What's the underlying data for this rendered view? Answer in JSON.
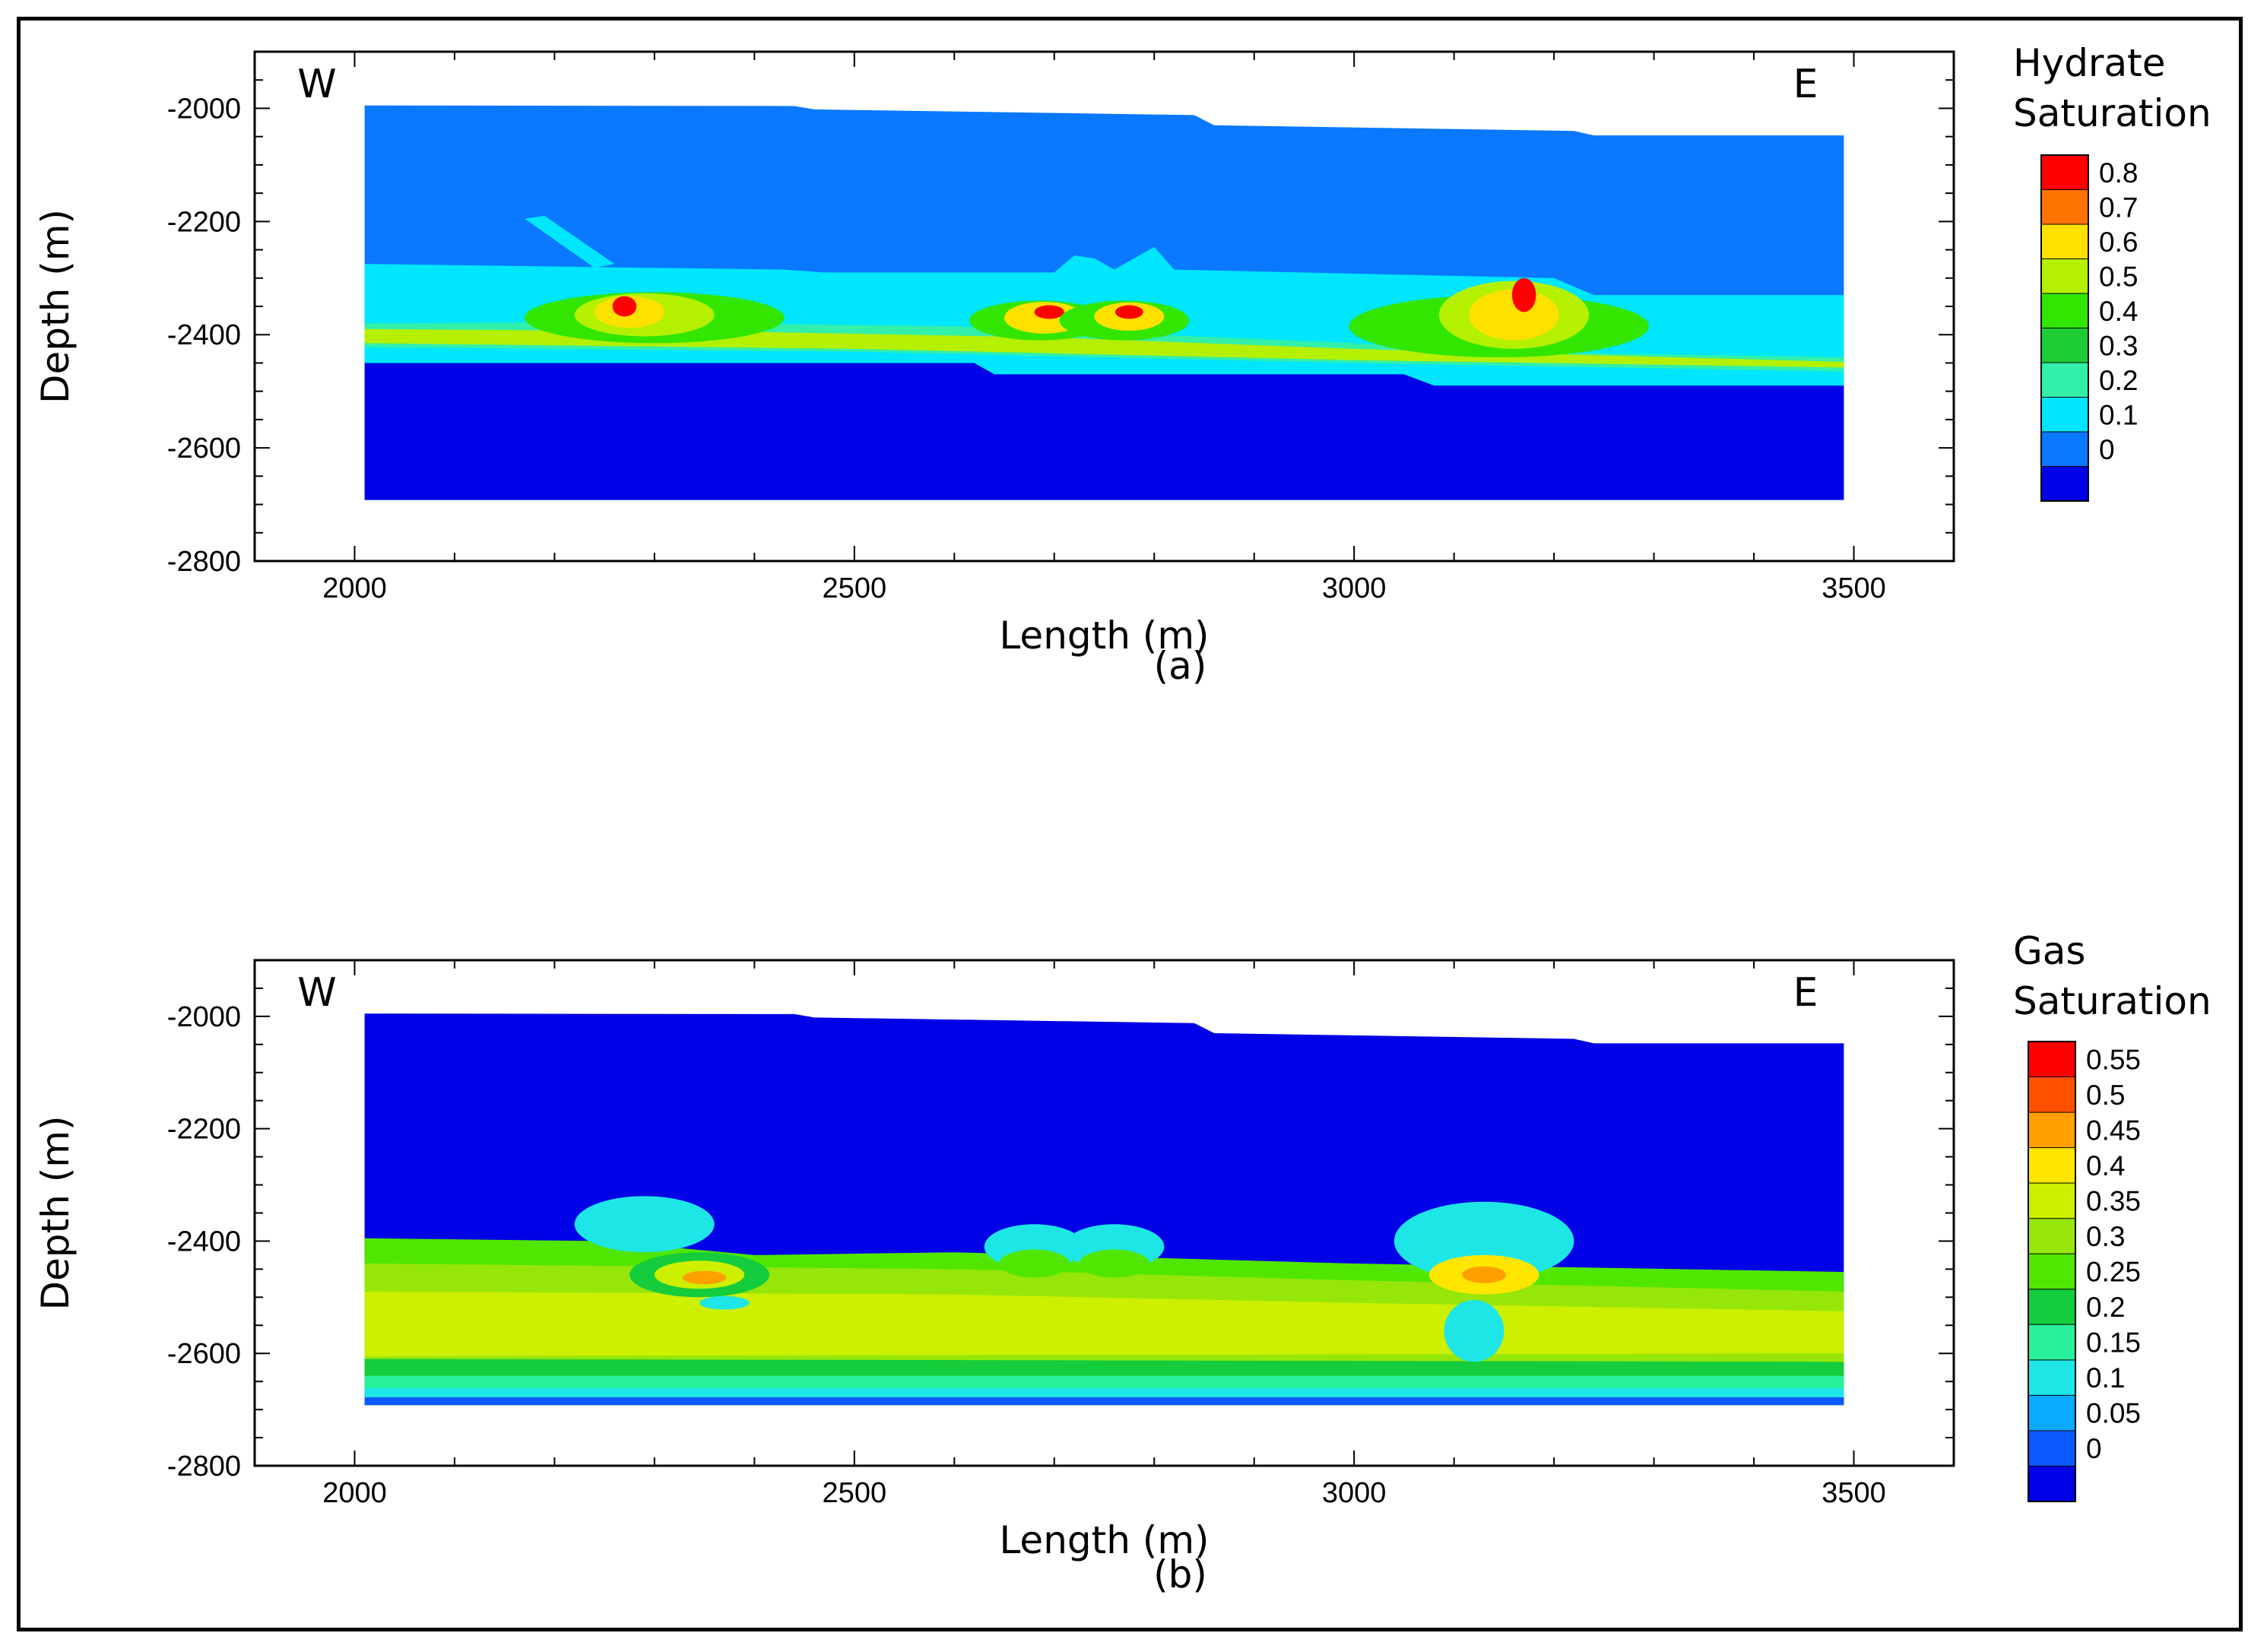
{
  "chart_data": [
    {
      "type": "heatmap",
      "panel": "a",
      "caption": "(a)",
      "xlabel": "Length (m)",
      "ylabel": "Depth (m)",
      "xlim": [
        1900,
        3600
      ],
      "ylim": [
        -2800,
        -1900
      ],
      "xticks": [
        2000,
        2500,
        3000,
        3500
      ],
      "yticks": [
        -2000,
        -2200,
        -2400,
        -2600,
        -2800
      ],
      "x_tick_labels": [
        "2000",
        "2500",
        "3000",
        "3500"
      ],
      "y_tick_labels": [
        "-2000",
        "-2200",
        "-2400",
        "-2600",
        "-2800"
      ],
      "grid": false,
      "west_label": "W",
      "east_label": "E",
      "legend": {
        "title_line1": "Hydrate",
        "title_line2": "Saturation",
        "placement": "right",
        "labels": [
          "0.8",
          "0.7",
          "0.6",
          "0.5",
          "0.4",
          "0.3",
          "0.2",
          "0.1",
          "0"
        ],
        "colors": [
          "#ff0000",
          "#ff7300",
          "#ffe100",
          "#b4f000",
          "#32e600",
          "#1ecc34",
          "#32f0aa",
          "#00e6ff",
          "#0a78ff",
          "#0000e6"
        ]
      },
      "layers": [
        {
          "top": [
            [
              2010,
              -1995
            ],
            [
              2440,
              -1996
            ],
            [
              2460,
              -2002
            ],
            [
              2840,
              -2012
            ],
            [
              2860,
              -2030
            ],
            [
              3220,
              -2040
            ],
            [
              3240,
              -2048
            ],
            [
              3490,
              -2048
            ]
          ],
          "bottom": [
            [
              2010,
              -2692
            ],
            [
              3490,
              -2692
            ]
          ],
          "color": "#0a78ff"
        },
        {
          "top": [
            [
              2010,
              -2275
            ],
            [
              2430,
              -2285
            ],
            [
              2470,
              -2290
            ],
            [
              2700,
              -2290
            ],
            [
              2720,
              -2260
            ],
            [
              2740,
              -2265
            ],
            [
              2760,
              -2285
            ],
            [
              2800,
              -2245
            ],
            [
              2820,
              -2285
            ],
            [
              3200,
              -2300
            ],
            [
              3240,
              -2330
            ],
            [
              3490,
              -2330
            ]
          ],
          "bottom": [
            [
              2010,
              -2692
            ],
            [
              3490,
              -2692
            ]
          ],
          "color": "#00e6ff"
        },
        {
          "top": [
            [
              2010,
              -2380
            ],
            [
              2250,
              -2378
            ],
            [
              2600,
              -2385
            ],
            [
              3000,
              -2415
            ],
            [
              3150,
              -2430
            ],
            [
              3490,
              -2440
            ]
          ],
          "bottom": [
            [
              2010,
              -2422
            ],
            [
              2500,
              -2430
            ],
            [
              3000,
              -2450
            ],
            [
              3490,
              -2465
            ]
          ],
          "color": "#32f0aa"
        },
        {
          "top": [
            [
              2010,
              -2390
            ],
            [
              2400,
              -2395
            ],
            [
              2700,
              -2405
            ],
            [
              3000,
              -2425
            ],
            [
              3490,
              -2448
            ]
          ],
          "bottom": [
            [
              2010,
              -2415
            ],
            [
              2500,
              -2425
            ],
            [
              3000,
              -2445
            ],
            [
              3490,
              -2458
            ]
          ],
          "color": "#b4f000"
        },
        {
          "top": [
            [
              2010,
              -2450
            ],
            [
              2620,
              -2450
            ],
            [
              2640,
              -2470
            ],
            [
              3050,
              -2470
            ],
            [
              3080,
              -2490
            ],
            [
              3490,
              -2490
            ]
          ],
          "bottom": [
            [
              2010,
              -2692
            ],
            [
              3490,
              -2692
            ]
          ],
          "color": "#0000e6"
        }
      ],
      "zones": [
        {
          "x": 2300,
          "y": -2370,
          "rx": 130,
          "ry": 45,
          "color": "#32e600"
        },
        {
          "x": 2290,
          "y": -2365,
          "rx": 70,
          "ry": 38,
          "color": "#b4f000"
        },
        {
          "x": 2275,
          "y": -2360,
          "rx": 35,
          "ry": 28,
          "color": "#ffe100"
        },
        {
          "x": 2270,
          "y": -2350,
          "rx": 12,
          "ry": 18,
          "color": "#ff0000"
        },
        {
          "x": 2685,
          "y": -2375,
          "rx": 70,
          "ry": 35,
          "color": "#32e600"
        },
        {
          "x": 2690,
          "y": -2370,
          "rx": 40,
          "ry": 28,
          "color": "#ffe100"
        },
        {
          "x": 2695,
          "y": -2360,
          "rx": 15,
          "ry": 12,
          "color": "#ff0000"
        },
        {
          "x": 2770,
          "y": -2375,
          "rx": 65,
          "ry": 35,
          "color": "#32e600"
        },
        {
          "x": 2775,
          "y": -2368,
          "rx": 35,
          "ry": 25,
          "color": "#ffe100"
        },
        {
          "x": 2775,
          "y": -2360,
          "rx": 14,
          "ry": 12,
          "color": "#ff0000"
        },
        {
          "x": 3145,
          "y": -2385,
          "rx": 150,
          "ry": 55,
          "color": "#32e600"
        },
        {
          "x": 3160,
          "y": -2365,
          "rx": 75,
          "ry": 60,
          "color": "#b4f000"
        },
        {
          "x": 3160,
          "y": -2365,
          "rx": 45,
          "ry": 45,
          "color": "#ffe100"
        },
        {
          "x": 3170,
          "y": -2330,
          "rx": 12,
          "ry": 30,
          "color": "#ff0000"
        }
      ],
      "features": [
        {
          "points": [
            [
              2170,
              -2195
            ],
            [
              2190,
              -2190
            ],
            [
              2260,
              -2275
            ],
            [
              2240,
              -2282
            ]
          ],
          "color": "#00e6ff"
        }
      ]
    },
    {
      "type": "heatmap",
      "panel": "b",
      "caption": "(b)",
      "xlabel": "Length (m)",
      "ylabel": "Depth (m)",
      "xlim": [
        1900,
        3600
      ],
      "ylim": [
        -2800,
        -1900
      ],
      "xticks": [
        2000,
        2500,
        3000,
        3500
      ],
      "yticks": [
        -2000,
        -2200,
        -2400,
        -2600,
        -2800
      ],
      "x_tick_labels": [
        "2000",
        "2500",
        "3000",
        "3500"
      ],
      "y_tick_labels": [
        "-2000",
        "-2200",
        "-2400",
        "-2600",
        "-2800"
      ],
      "grid": false,
      "west_label": "W",
      "east_label": "E",
      "legend": {
        "title_line1": "Gas",
        "title_line2": "Saturation",
        "placement": "right",
        "labels": [
          "0.55",
          "0.5",
          "0.45",
          "0.4",
          "0.35",
          "0.3",
          "0.25",
          "0.2",
          "0.15",
          "0.1",
          "0.05",
          "0"
        ],
        "colors": [
          "#ff0000",
          "#ff5000",
          "#ffa000",
          "#ffe600",
          "#ccf000",
          "#96e60a",
          "#50e600",
          "#14cc3c",
          "#28f09a",
          "#1ee6e6",
          "#0aaaff",
          "#0a5aff",
          "#0000e6"
        ]
      },
      "layers": [
        {
          "top": [
            [
              2010,
              -1995
            ],
            [
              2440,
              -1996
            ],
            [
              2460,
              -2002
            ],
            [
              2840,
              -2012
            ],
            [
              2860,
              -2030
            ],
            [
              3220,
              -2040
            ],
            [
              3240,
              -2048
            ],
            [
              3490,
              -2048
            ]
          ],
          "bottom": [
            [
              2010,
              -2692
            ],
            [
              3490,
              -2692
            ]
          ],
          "color": "#0000e6"
        },
        {
          "top": [
            [
              2010,
              -2395
            ],
            [
              2250,
              -2400
            ],
            [
              2400,
              -2425
            ],
            [
              2600,
              -2420
            ],
            [
              3000,
              -2440
            ],
            [
              3490,
              -2455
            ]
          ],
          "bottom": [
            [
              2010,
              -2692
            ],
            [
              3490,
              -2692
            ]
          ],
          "color": "#50e600"
        },
        {
          "top": [
            [
              2010,
              -2440
            ],
            [
              2600,
              -2450
            ],
            [
              3000,
              -2470
            ],
            [
              3490,
              -2490
            ]
          ],
          "bottom": [
            [
              2010,
              -2610
            ],
            [
              3490,
              -2615
            ]
          ],
          "color": "#96e60a"
        },
        {
          "top": [
            [
              2010,
              -2490
            ],
            [
              2600,
              -2495
            ],
            [
              3000,
              -2510
            ],
            [
              3490,
              -2525
            ]
          ],
          "bottom": [
            [
              2010,
              -2605
            ],
            [
              3490,
              -2600
            ]
          ],
          "color": "#ccf000"
        },
        {
          "top": [
            [
              2010,
              -2610
            ],
            [
              3490,
              -2615
            ]
          ],
          "bottom": [
            [
              2010,
              -2640
            ],
            [
              3490,
              -2640
            ]
          ],
          "color": "#14cc3c"
        },
        {
          "top": [
            [
              2010,
              -2640
            ],
            [
              3490,
              -2640
            ]
          ],
          "bottom": [
            [
              2010,
              -2662
            ],
            [
              3490,
              -2662
            ]
          ],
          "color": "#28f09a"
        },
        {
          "top": [
            [
              2010,
              -2662
            ],
            [
              3490,
              -2662
            ]
          ],
          "bottom": [
            [
              2010,
              -2678
            ],
            [
              3490,
              -2678
            ]
          ],
          "color": "#1ee6e6"
        },
        {
          "top": [
            [
              2010,
              -2678
            ],
            [
              3490,
              -2678
            ]
          ],
          "bottom": [
            [
              2010,
              -2692
            ],
            [
              3490,
              -2692
            ]
          ],
          "color": "#0a5aff"
        }
      ],
      "zones": [
        {
          "x": 2290,
          "y": -2370,
          "rx": 70,
          "ry": 50,
          "color": "#1ee6e6"
        },
        {
          "x": 2345,
          "y": -2460,
          "rx": 70,
          "ry": 40,
          "color": "#14cc3c"
        },
        {
          "x": 2345,
          "y": -2460,
          "rx": 45,
          "ry": 25,
          "color": "#ccf000"
        },
        {
          "x": 2350,
          "y": -2465,
          "rx": 22,
          "ry": 12,
          "color": "#ffa000"
        },
        {
          "x": 2370,
          "y": -2510,
          "rx": 25,
          "ry": 12,
          "color": "#1ee6e6"
        },
        {
          "x": 2680,
          "y": -2410,
          "rx": 50,
          "ry": 40,
          "color": "#1ee6e6"
        },
        {
          "x": 2680,
          "y": -2440,
          "rx": 35,
          "ry": 25,
          "color": "#50e600"
        },
        {
          "x": 2760,
          "y": -2410,
          "rx": 50,
          "ry": 40,
          "color": "#1ee6e6"
        },
        {
          "x": 2760,
          "y": -2440,
          "rx": 35,
          "ry": 25,
          "color": "#50e600"
        },
        {
          "x": 3130,
          "y": -2400,
          "rx": 90,
          "ry": 70,
          "color": "#1ee6e6"
        },
        {
          "x": 3130,
          "y": -2460,
          "rx": 55,
          "ry": 35,
          "color": "#ffe600"
        },
        {
          "x": 3130,
          "y": -2460,
          "rx": 22,
          "ry": 15,
          "color": "#ffa000"
        },
        {
          "x": 3120,
          "y": -2560,
          "rx": 30,
          "ry": 55,
          "color": "#1ee6e6"
        }
      ],
      "features": []
    }
  ]
}
